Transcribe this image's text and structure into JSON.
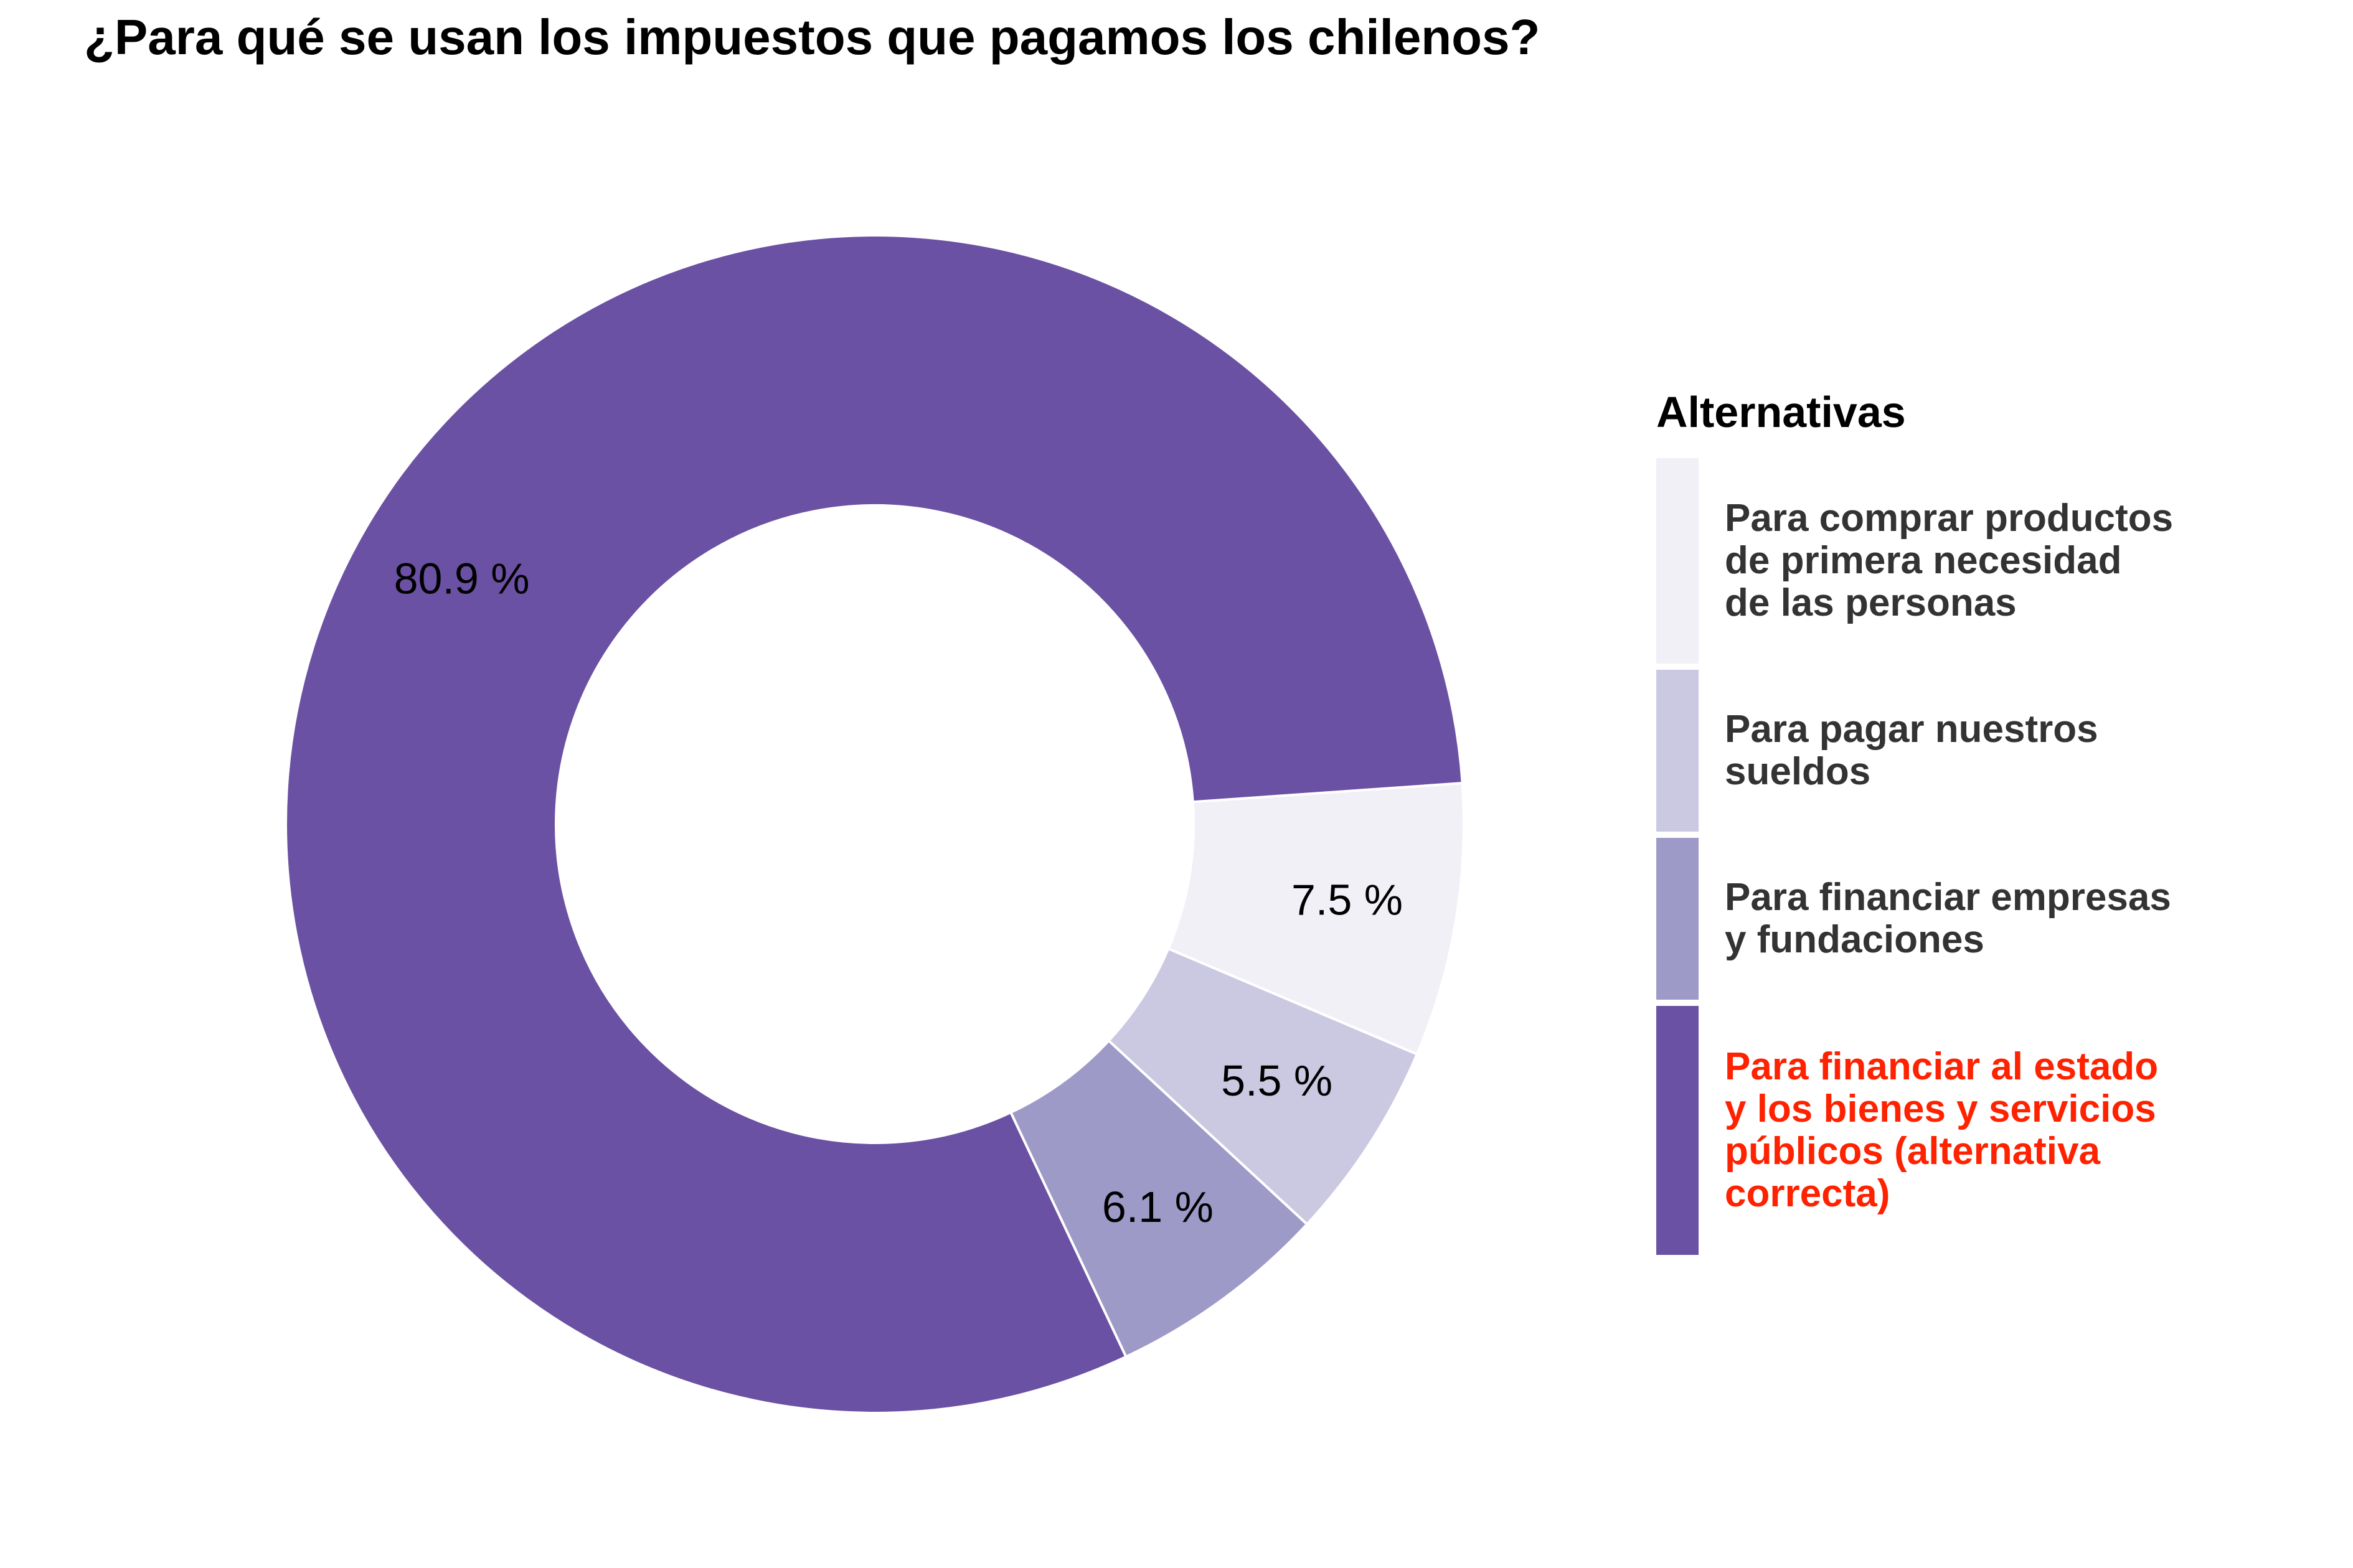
{
  "title": "¿Para qué se usan los impuestos que pagamos los chilenos?",
  "chart_data": {
    "type": "pie",
    "variant": "donut",
    "title": "¿Para qué se usan los impuestos que pagamos los chilenos?",
    "legend_title": "Alternativas",
    "legend_position": "right",
    "slices": [
      {
        "name": "Para comprar productos\nde primera necesidad\nde las personas",
        "value": 7.5,
        "label": "7.5 %",
        "color": "#f2f0f7",
        "label_color": "#333333"
      },
      {
        "name": "Para pagar nuestros\nsueldos",
        "value": 5.5,
        "label": "5.5 %",
        "color": "#cbc9e2",
        "label_color": "#333333"
      },
      {
        "name": "Para financiar empresas\ny fundaciones",
        "value": 6.1,
        "label": "6.1 %",
        "color": "#9e9ac8",
        "label_color": "#333333"
      },
      {
        "name": "Para financiar al estado\ny los bienes y servicios\npúblicos (alternativa\ncorrecta)",
        "value": 80.9,
        "label": "80.9 %",
        "color": "#6a51a3",
        "label_color": "#ff2200"
      }
    ]
  }
}
